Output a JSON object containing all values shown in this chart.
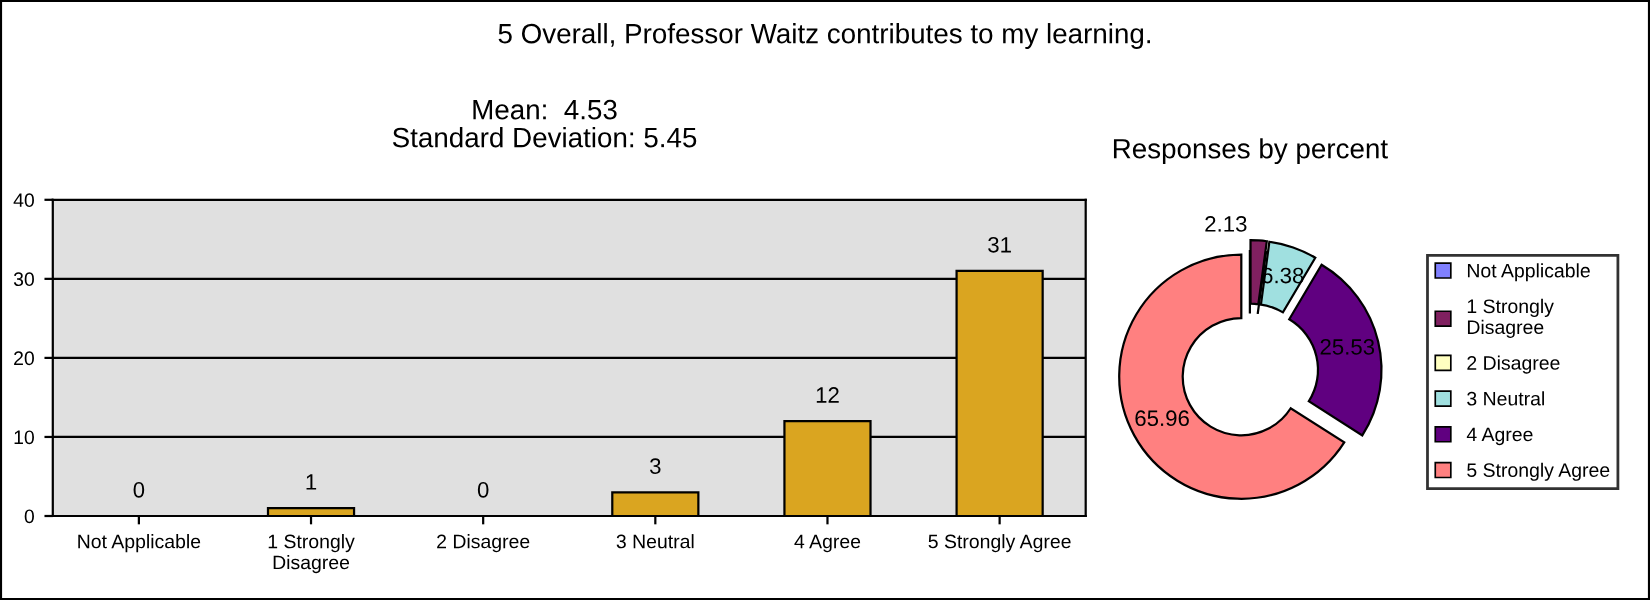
{
  "chart_data": [
    {
      "type": "bar",
      "title": "5 Overall, Professor Waitz contributes to my learning.",
      "subtitle": "Mean:  4.53\nStandard Deviation: 5.45",
      "categories": [
        "Not Applicable",
        "1 Strongly\nDisagree",
        "2 Disagree",
        "3 Neutral",
        "4 Agree",
        "5 Strongly Agree"
      ],
      "values": [
        0,
        1,
        0,
        3,
        12,
        31
      ],
      "color": "#daa520",
      "ylim": [
        0,
        40
      ],
      "yticks": [
        0,
        10,
        20,
        30,
        40
      ],
      "grid": "y",
      "data_labels": true,
      "legend": false
    },
    {
      "type": "donut",
      "title": "Responses by percent",
      "categories": [
        "Not Applicable",
        "1 Strongly\nDisagree",
        "2 Disagree",
        "3 Neutral",
        "4 Agree",
        "5 Strongly Agree"
      ],
      "values": [
        0,
        2.13,
        0,
        6.38,
        25.53,
        65.96
      ],
      "value_labels": [
        null,
        "2.13",
        null,
        "6.38",
        "25.53",
        "65.96"
      ],
      "colors": [
        "#8080ff",
        "#802060",
        "#ffffc0",
        "#a0e0e0",
        "#600080",
        "#ff8080"
      ],
      "legend": "right"
    }
  ]
}
